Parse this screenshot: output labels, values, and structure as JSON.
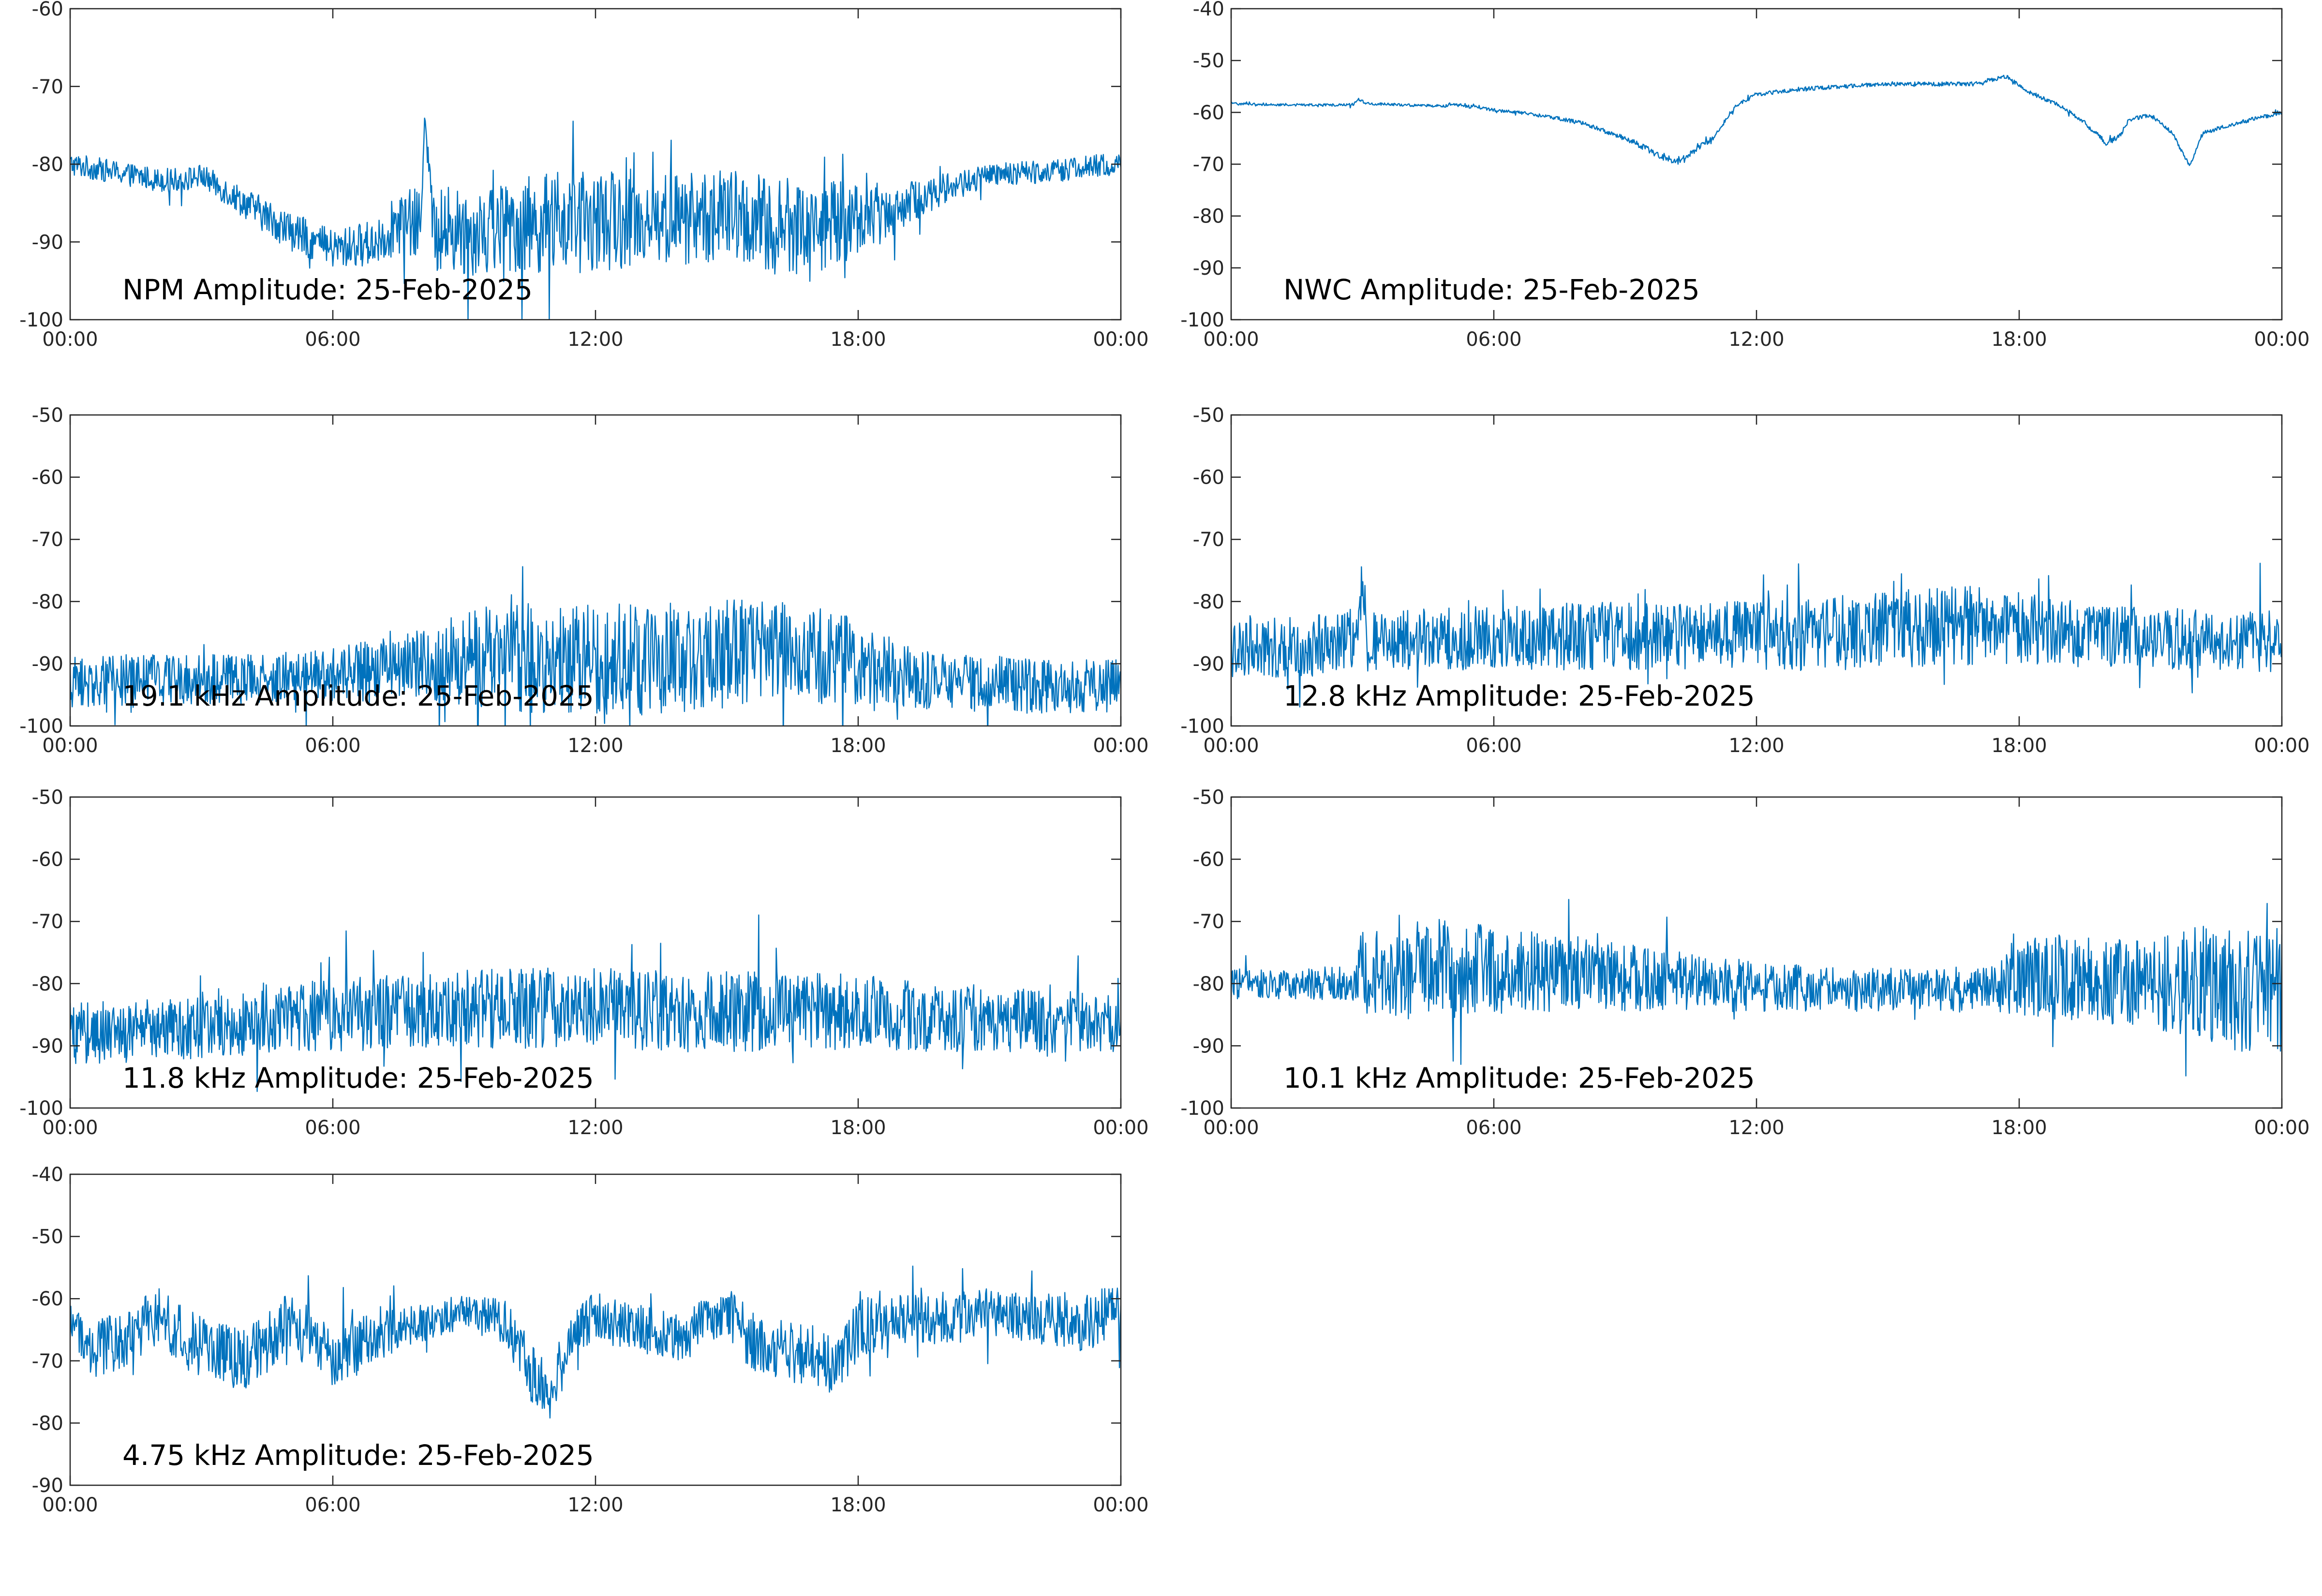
{
  "style": {
    "line_color": "#0072BD",
    "axes_color": "#262626",
    "background": "#ffffff"
  },
  "chart_data": [
    {
      "type": "line",
      "title": "NPM Amplitude: 25-Feb-2025",
      "xlabel": "",
      "ylabel": "",
      "xlim": [
        "00:00",
        "24:00"
      ],
      "ylim": [
        -100,
        -60
      ],
      "xticks": [
        "00:00",
        "06:00",
        "12:00",
        "18:00",
        "00:00"
      ],
      "yticks": [
        "-60",
        "-70",
        "-80",
        "-90",
        "-100"
      ],
      "grid": false,
      "series": [
        {
          "x_hours": [
            0,
            1,
            2,
            2.5,
            3,
            4,
            5,
            6,
            7,
            7.5,
            8,
            8.1,
            8.3,
            9,
            10,
            11,
            12,
            13,
            14,
            15,
            16,
            17,
            18,
            19,
            20,
            21,
            22,
            23,
            24
          ],
          "center": [
            -80,
            -81,
            -82,
            -82,
            -81.5,
            -85,
            -88.5,
            -91,
            -90,
            -87.5,
            -88,
            -73,
            -89,
            -88.5,
            -88,
            -87.5,
            -87.5,
            -87,
            -87,
            -86.5,
            -88,
            -88,
            -87,
            -85.5,
            -83,
            -81.5,
            -81,
            -80.5,
            -80
          ],
          "spread": [
            1.5,
            1.5,
            1.5,
            1.5,
            1.5,
            2,
            2.5,
            2.5,
            3,
            4,
            5,
            1,
            5,
            6,
            6,
            6.5,
            6.5,
            6,
            6,
            6,
            6.5,
            6,
            5,
            3,
            2,
            1.5,
            1.5,
            1.5,
            1.5
          ]
        }
      ]
    },
    {
      "type": "line",
      "title": "NWC Amplitude: 25-Feb-2025",
      "xlabel": "",
      "ylabel": "",
      "xlim": [
        "00:00",
        "24:00"
      ],
      "ylim": [
        -100,
        -40
      ],
      "xticks": [
        "00:00",
        "06:00",
        "12:00",
        "18:00",
        "00:00"
      ],
      "yticks": [
        "-40",
        "-50",
        "-60",
        "-70",
        "-80",
        "-90",
        "-100"
      ],
      "grid": false,
      "series": [
        {
          "x_hours": [
            0,
            1,
            2,
            2.8,
            2.9,
            3.1,
            4,
            4.9,
            5,
            6,
            7,
            8,
            9,
            9.5,
            9.8,
            10.2,
            11,
            11.5,
            12,
            13,
            14,
            15,
            16,
            17,
            17.7,
            18.2,
            19,
            19.5,
            20,
            20.3,
            20.5,
            21,
            21.5,
            21.9,
            22.2,
            23,
            24
          ],
          "center": [
            -58.3,
            -58.5,
            -58.6,
            -58.5,
            -57.5,
            -58.3,
            -58.6,
            -58.8,
            -58.4,
            -59.5,
            -60.5,
            -62,
            -65,
            -67,
            -68.5,
            -69.5,
            -65,
            -59,
            -56.5,
            -55.5,
            -55,
            -54.5,
            -54.5,
            -54.5,
            -53,
            -56,
            -59,
            -62,
            -66,
            -64.5,
            -61.5,
            -60.5,
            -64,
            -70.5,
            -64,
            -62,
            -60
          ],
          "spread": [
            0.25,
            0.25,
            0.25,
            0.25,
            0.3,
            0.25,
            0.25,
            0.25,
            0.3,
            0.3,
            0.35,
            0.4,
            0.5,
            0.6,
            0.6,
            0.6,
            0.5,
            0.4,
            0.4,
            0.4,
            0.4,
            0.4,
            0.4,
            0.4,
            0.4,
            0.4,
            0.4,
            0.5,
            0.5,
            0.5,
            0.4,
            0.4,
            0.4,
            0.5,
            0.4,
            0.4,
            0.4
          ]
        }
      ]
    },
    {
      "type": "line",
      "title": "19.1 kHz Amplitude: 25-Feb-2025",
      "xlabel": "",
      "ylabel": "",
      "xlim": [
        "00:00",
        "24:00"
      ],
      "ylim": [
        -100,
        -50
      ],
      "xticks": [
        "00:00",
        "06:00",
        "12:00",
        "18:00",
        "00:00"
      ],
      "yticks": [
        "-50",
        "-60",
        "-70",
        "-80",
        "-90",
        "-100"
      ],
      "grid": false,
      "series": [
        {
          "x_hours": [
            0,
            2,
            4,
            6,
            8,
            9,
            10,
            11,
            12,
            13,
            14,
            15,
            16,
            17,
            18,
            19,
            20,
            22,
            24
          ],
          "center": [
            -93,
            -92.5,
            -92.5,
            -91.5,
            -90,
            -89.5,
            -89,
            -89,
            -89,
            -89.5,
            -89,
            -88.5,
            -88,
            -88.5,
            -89.5,
            -92,
            -93,
            -93.5,
            -93.5
          ],
          "spread": [
            4,
            4,
            4,
            4,
            5.5,
            8,
            9,
            9,
            9,
            9,
            9,
            9,
            8,
            8,
            7,
            5,
            4.5,
            4.5,
            4.5
          ]
        }
      ]
    },
    {
      "type": "line",
      "title": "12.8 kHz Amplitude: 25-Feb-2025",
      "xlabel": "",
      "ylabel": "",
      "xlim": [
        "00:00",
        "24:00"
      ],
      "ylim": [
        -100,
        -50
      ],
      "xticks": [
        "00:00",
        "06:00",
        "12:00",
        "18:00",
        "00:00"
      ],
      "yticks": [
        "-50",
        "-60",
        "-70",
        "-80",
        "-90",
        "-100"
      ],
      "grid": false,
      "series": [
        {
          "x_hours": [
            0,
            2,
            2.9,
            3,
            3.1,
            4,
            6,
            8,
            10,
            12,
            14,
            15,
            16,
            17,
            18,
            19,
            20,
            22,
            24
          ],
          "center": [
            -87.5,
            -87,
            -86.5,
            -75,
            -86.5,
            -86,
            -86,
            -85.5,
            -85.5,
            -85.5,
            -85,
            -84.5,
            -84,
            -84,
            -84.5,
            -85,
            -85.5,
            -86,
            -86.5
          ],
          "spread": [
            5,
            5,
            5,
            3,
            5,
            5,
            5,
            5.5,
            5.5,
            5.5,
            6,
            6,
            6.5,
            6.5,
            6,
            5.5,
            5,
            5,
            5
          ]
        }
      ]
    },
    {
      "type": "line",
      "title": "11.8 kHz Amplitude: 25-Feb-2025",
      "xlabel": "",
      "ylabel": "",
      "xlim": [
        "00:00",
        "24:00"
      ],
      "ylim": [
        -100,
        -50
      ],
      "xticks": [
        "00:00",
        "06:00",
        "12:00",
        "18:00",
        "00:00"
      ],
      "yticks": [
        "-50",
        "-60",
        "-70",
        "-80",
        "-90",
        "-100"
      ],
      "grid": false,
      "series": [
        {
          "x_hours": [
            0,
            2,
            3,
            4,
            6,
            8,
            10,
            12,
            14,
            16,
            18,
            20,
            22,
            24
          ],
          "center": [
            -88,
            -87.5,
            -86.5,
            -86,
            -85,
            -84.5,
            -84,
            -84,
            -84.5,
            -84.5,
            -84.5,
            -85.5,
            -86,
            -86.5
          ],
          "spread": [
            5,
            5,
            5.5,
            5.5,
            6,
            6,
            6.5,
            6.5,
            6.5,
            6.5,
            6,
            5.5,
            5,
            5
          ]
        }
      ]
    },
    {
      "type": "line",
      "title": "10.1 kHz Amplitude: 25-Feb-2025",
      "xlabel": "",
      "ylabel": "",
      "xlim": [
        "00:00",
        "24:00"
      ],
      "ylim": [
        -100,
        -50
      ],
      "xticks": [
        "00:00",
        "06:00",
        "12:00",
        "18:00",
        "00:00"
      ],
      "yticks": [
        "-50",
        "-60",
        "-70",
        "-80",
        "-90",
        "-100"
      ],
      "grid": false,
      "series": [
        {
          "x_hours": [
            0,
            2,
            2.8,
            3,
            4,
            5,
            6,
            8,
            10,
            12,
            14,
            16,
            17.5,
            18,
            19,
            20,
            21,
            22,
            23,
            24
          ],
          "center": [
            -80,
            -80,
            -80,
            -78,
            -78,
            -77.5,
            -78,
            -78.5,
            -79.5,
            -80.5,
            -81,
            -81,
            -80.5,
            -79,
            -79,
            -79.5,
            -80,
            -80,
            -81,
            -81
          ],
          "spread": [
            2.5,
            2.5,
            3,
            7,
            8,
            8,
            7,
            6,
            5,
            4,
            3.5,
            3.5,
            4,
            6,
            7,
            7,
            7,
            9,
            10,
            10
          ]
        }
      ]
    },
    {
      "type": "line",
      "title": "4.75 kHz Amplitude: 25-Feb-2025",
      "xlabel": "",
      "ylabel": "",
      "xlim": [
        "00:00",
        "24:00"
      ],
      "ylim": [
        -90,
        -40
      ],
      "xticks": [
        "00:00",
        "06:00",
        "12:00",
        "18:00",
        "00:00"
      ],
      "yticks": [
        "-40",
        "-50",
        "-60",
        "-70",
        "-80",
        "-90"
      ],
      "grid": false,
      "series": [
        {
          "x_hours": [
            0,
            0.5,
            1,
            2,
            3,
            4,
            5,
            6,
            7,
            8,
            9,
            10,
            10.5,
            11,
            11.5,
            12,
            13,
            14,
            15,
            15.5,
            16,
            17,
            17.5,
            18,
            19,
            20,
            21,
            22,
            23,
            24
          ],
          "center": [
            -64,
            -69,
            -67,
            -63,
            -68,
            -70,
            -64,
            -69,
            -66,
            -64,
            -62,
            -64,
            -72,
            -75,
            -65,
            -63,
            -65,
            -66,
            -62,
            -66,
            -68,
            -69,
            -72,
            -65,
            -63,
            -64,
            -62,
            -63,
            -64,
            -62
          ],
          "spread": [
            3,
            5,
            5,
            5,
            5,
            5,
            5,
            5,
            4,
            3,
            3,
            4,
            5,
            5,
            4,
            4,
            4,
            4,
            4,
            5,
            5,
            5,
            5,
            5,
            4,
            4,
            4,
            4,
            5,
            4
          ]
        }
      ]
    }
  ]
}
